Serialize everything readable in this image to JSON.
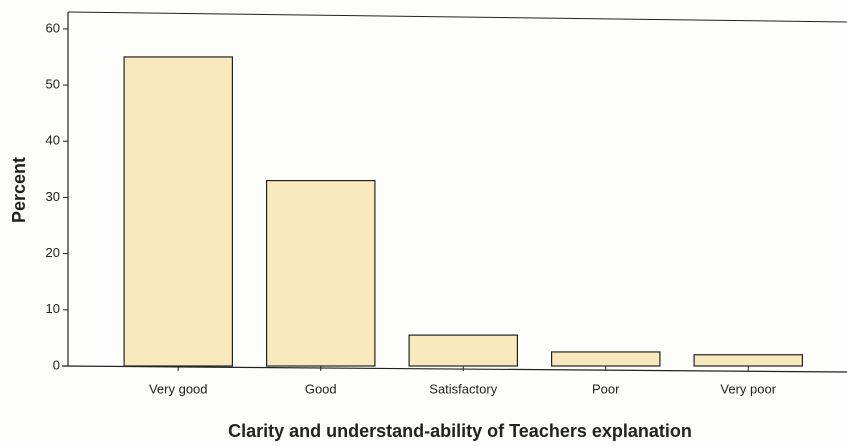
{
  "chart_data": {
    "type": "bar",
    "xlabel": "Clarity and understand-ability of Teachers explanation",
    "ylabel": "Percent",
    "categories": [
      "Very good",
      "Good",
      "Satisfactory",
      "Poor",
      "Very poor"
    ],
    "values": [
      55,
      33,
      5.5,
      2.5,
      2
    ],
    "color": "#f8e9bd",
    "ylim": [
      0,
      63
    ],
    "yticks": [
      0,
      10,
      20,
      30,
      40,
      50,
      60
    ]
  }
}
